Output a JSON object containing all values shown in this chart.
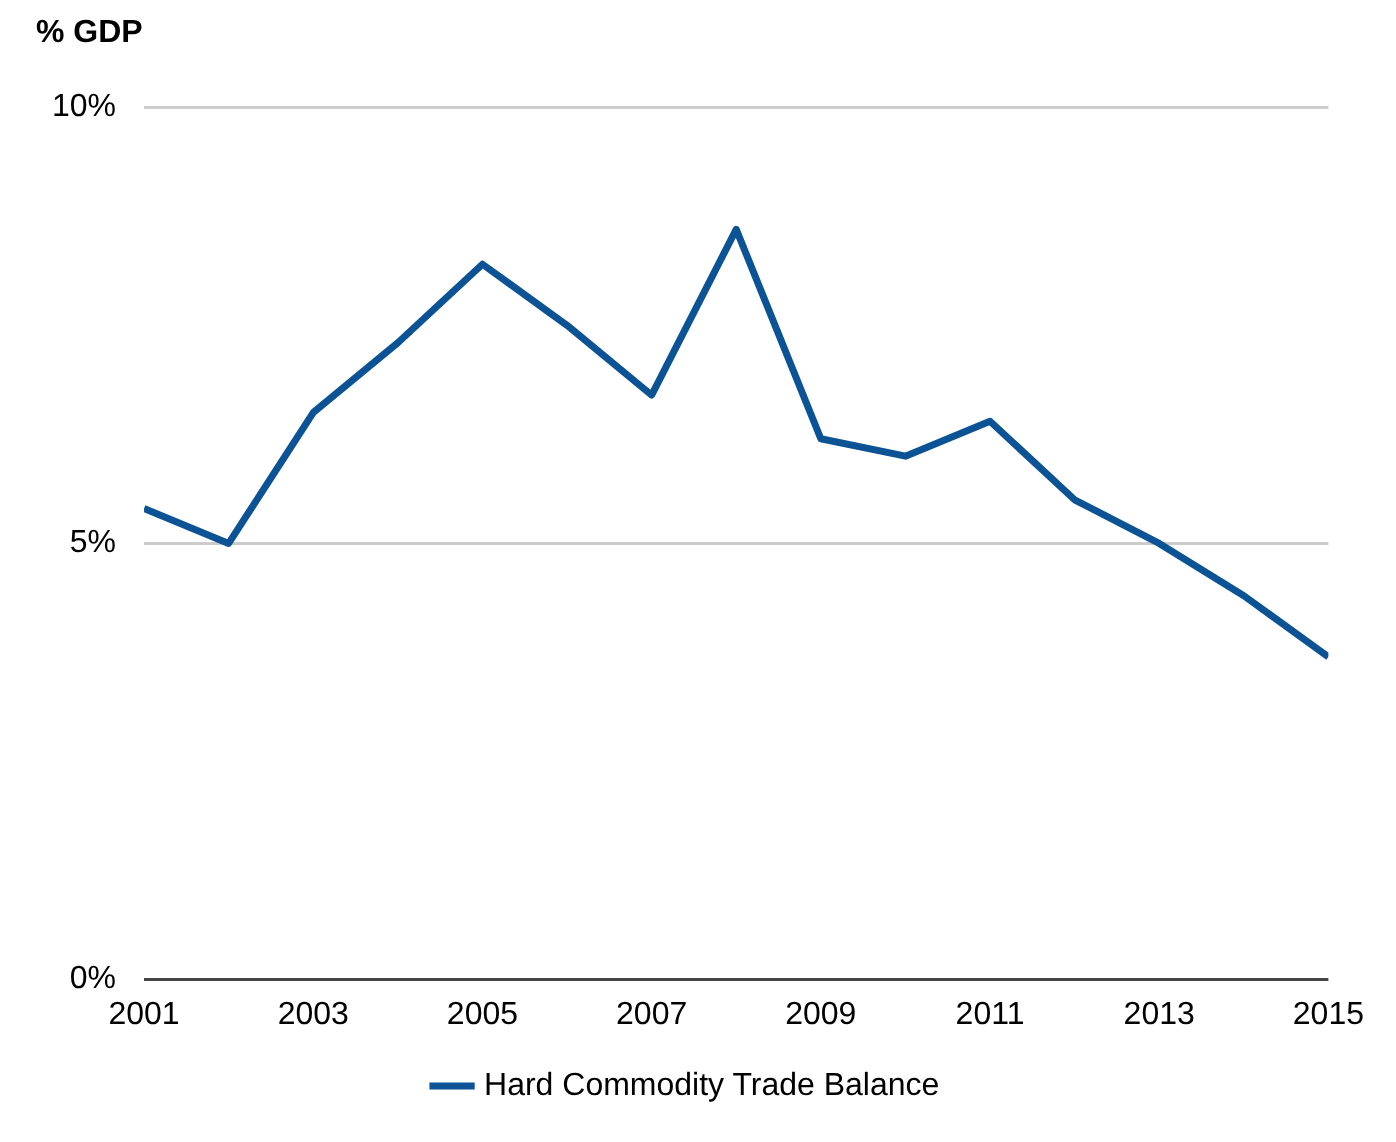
{
  "chart_data": {
    "type": "line",
    "ylabel": "% GDP",
    "x": [
      2001,
      2002,
      2003,
      2004,
      2005,
      2006,
      2007,
      2008,
      2009,
      2010,
      2011,
      2012,
      2013,
      2014,
      2015
    ],
    "series": [
      {
        "name": "Hard Commodity Trade Balance",
        "color": "#0b5394",
        "values": [
          5.4,
          5.0,
          6.5,
          7.3,
          8.2,
          7.5,
          6.7,
          8.6,
          6.2,
          6.0,
          6.4,
          5.5,
          5.0,
          4.4,
          3.7
        ]
      }
    ],
    "xlim": [
      2001,
      2015
    ],
    "xticks": [
      2001,
      2003,
      2005,
      2007,
      2009,
      2011,
      2013,
      2015
    ],
    "ylim": [
      0,
      10
    ],
    "yticks": [
      {
        "value": 0,
        "label": "0%"
      },
      {
        "value": 5,
        "label": "5%"
      },
      {
        "value": 10,
        "label": "10%"
      }
    ],
    "grid": "y",
    "legend": "bottom",
    "marker": "none",
    "line_style": "solid"
  }
}
